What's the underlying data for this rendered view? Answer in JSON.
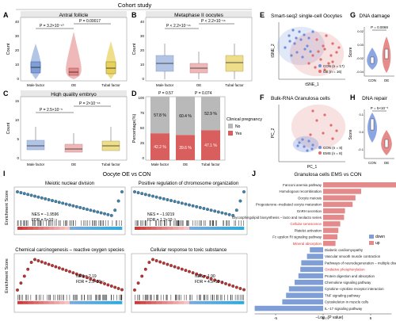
{
  "header": {
    "cohort": "Cohort study",
    "bottom": "Oocyte OE vs CON"
  },
  "panels": {
    "A": {
      "letter": "A",
      "title": "Antral follicle",
      "ylabel": "Count",
      "ticks": [
        "0",
        "10",
        "20",
        "30",
        "40"
      ],
      "cats": [
        "Male factor",
        "OE",
        "Tubal factor"
      ],
      "p1": "P = 3.2×10⁻¹⁰",
      "p2": "P = 0.00017"
    },
    "B": {
      "letter": "B",
      "title": "Metaphase II oocytes",
      "ylabel": "Count",
      "ticks": [
        "0",
        "10",
        "20",
        "30",
        "40"
      ],
      "cats": [
        "Male factor",
        "OE",
        "Tubal factor"
      ],
      "p1": "P < 2.2×10⁻¹⁶",
      "p2": "P < 2.2×10⁻¹⁶"
    },
    "C": {
      "letter": "C",
      "title": "High quality embryo",
      "ylabel": "Count",
      "ticks": [
        "0",
        "5",
        "10",
        "15"
      ],
      "cats": [
        "Male factor",
        "OE",
        "Tubal factor"
      ],
      "p1": "P = 2.5×10⁻⁵",
      "p2": "P = 2×10⁻¹⁶"
    },
    "D": {
      "letter": "D",
      "ylabel": "Percentage(%)",
      "ticks": [
        "0",
        "25",
        "50",
        "75",
        "100"
      ],
      "cats": [
        "Male factor",
        "OE",
        "Tubal factor"
      ],
      "p1": "P = 0.57",
      "p2": "P = 0.074",
      "legend_title": "Clinical pregnancy",
      "legend_no": "No",
      "legend_yes": "Yes"
    },
    "E": {
      "letter": "E",
      "title": "Smart-seq2 single-cell Oocytes",
      "xlabel": "tSNE_1",
      "ylabel": "tSNE_2",
      "legend": [
        "CON (n = 17)",
        "OE (n = 16)"
      ]
    },
    "F": {
      "letter": "F",
      "title": "Bulk-RNA Granulosa cells",
      "xlabel": "PC_1",
      "ylabel": "PC_2",
      "legend": [
        "CON (n = 8)",
        "EMS (n = 8)"
      ]
    },
    "G": {
      "letter": "G",
      "title": "DNA damage",
      "ylabel": "Score",
      "ticks": [
        "-0.04",
        "-0.02",
        "0.00",
        "0.02"
      ],
      "cats": [
        "CON",
        "OE"
      ],
      "p": "P = 0.0069"
    },
    "H": {
      "letter": "H",
      "title": "DNA repair",
      "ylabel": "Score",
      "ticks": [
        "-0.1",
        "0.0",
        "0.1"
      ],
      "cats": [
        "CON",
        "OE"
      ],
      "p": "P = 5×10⁻⁵"
    },
    "I": {
      "letter": "I",
      "ylabel": "Enrichment Score",
      "g1": {
        "title": "Meiotic nuclear division",
        "nes": "NES = −1.9596",
        "fdr": "FDR = 5×10⁻⁴"
      },
      "g2": {
        "title": "Positive regulation of chromosome organization",
        "nes": "NES = −1.9219",
        "fdr": "FDR = 1.2×10⁻³"
      },
      "g3": {
        "title": "Chemical carcinogenesis – reactive oxygen species",
        "nes": "NES = 2.19",
        "fdr": "FDR = 2.5×10⁻⁷"
      },
      "g4": {
        "title": "Cellular response to toxic substance",
        "nes": "NES = 1.90",
        "fdr": "FDR = 4.9×10⁻⁶"
      }
    },
    "J": {
      "letter": "J",
      "title": "Granulosa cells EMS vs CON",
      "xlabel": "−Log₁₀(P value)",
      "legend_down": "down",
      "legend_up": "up",
      "ticks": [
        "-5",
        "0",
        "5"
      ],
      "up_terms": [
        "Fanconi anemia pathway",
        "Homologous recombination",
        "Oocyte meiosis",
        "Progesterone−mediated oocyte maturation",
        "GnRH secretion",
        "Glycosphingolipid biosynthesis – lacto and neolacto series",
        "Cellular senescence",
        "Platelet activation",
        "Fc epsilon RI signaling pathway",
        "Mineral absorption"
      ],
      "down_terms": [
        "Diabetic cardiomyopathy",
        "Vascular smooth muscle contraction",
        "Pathways of neurodegeneration – multiple diseases",
        "Oxidative phosphorylation",
        "Protein digestion and absorption",
        "Chemokine signaling pathway",
        "Cytokine−cytokine receptor interaction",
        "TNF signaling pathway",
        "Cytoskeleton in muscle cells",
        "IL−17 signaling pathway"
      ],
      "highlight": [
        "Cellular senescence",
        "Mineral absorption",
        "Oxidative phosphorylation"
      ]
    }
  },
  "colors": {
    "male": "#7f9ed6",
    "oe": "#e58a8a",
    "tubal": "#e8d15a",
    "con": "#6f8fdc",
    "oe2": "#e06e6e",
    "no": "#b9b9b9",
    "yes": "#d95f5f",
    "highlight": "#d33"
  },
  "chart_data": [
    {
      "type": "box",
      "panel": "A",
      "categories": [
        "Male factor",
        "OE",
        "Tubal factor"
      ],
      "medians": [
        13,
        7,
        13
      ],
      "ylim": [
        0,
        40
      ]
    },
    {
      "type": "box",
      "panel": "B",
      "categories": [
        "Male factor",
        "OE",
        "Tubal factor"
      ],
      "medians": [
        11,
        7,
        10
      ],
      "ylim": [
        0,
        40
      ]
    },
    {
      "type": "box",
      "panel": "C",
      "categories": [
        "Male factor",
        "OE",
        "Tubal factor"
      ],
      "medians": [
        3,
        2,
        3
      ],
      "ylim": [
        0,
        15
      ]
    },
    {
      "type": "bar",
      "panel": "D",
      "categories": [
        "Male factor",
        "OE",
        "Tubal factor"
      ],
      "series": [
        {
          "name": "Yes",
          "values": [
            42.2,
            39.6,
            47.1
          ]
        },
        {
          "name": "No",
          "values": [
            57.8,
            60.4,
            52.9
          ]
        }
      ],
      "ylim": [
        0,
        100
      ]
    },
    {
      "type": "bar",
      "panel": "J",
      "categories": [
        "Fanconi anemia pathway",
        "Homologous recombination",
        "Oocyte meiosis",
        "Progesterone−mediated oocyte maturation",
        "GnRH secretion",
        "Glycosphingolipid biosynthesis – lacto and neolacto series",
        "Cellular senescence",
        "Platelet activation",
        "Fc epsilon RI signaling pathway",
        "Mineral absorption",
        "Diabetic cardiomyopathy",
        "Vascular smooth muscle contraction",
        "Pathways of neurodegeneration – multiple diseases",
        "Oxidative phosphorylation",
        "Protein digestion and absorption",
        "Chemokine signaling pathway",
        "Cytokine−cytokine receptor interaction",
        "TNF signaling pathway",
        "Cytoskeleton in muscle cells",
        "IL−17 signaling pathway"
      ],
      "values": [
        7.8,
        4.0,
        3.4,
        3.1,
        2.3,
        2.2,
        1.8,
        1.6,
        1.5,
        1.3,
        -1.4,
        -1.7,
        -2.3,
        -2.4,
        -2.6,
        -3.0,
        -3.6,
        -3.9,
        -4.3,
        -7.2
      ],
      "xlim": [
        -8,
        8
      ]
    }
  ]
}
